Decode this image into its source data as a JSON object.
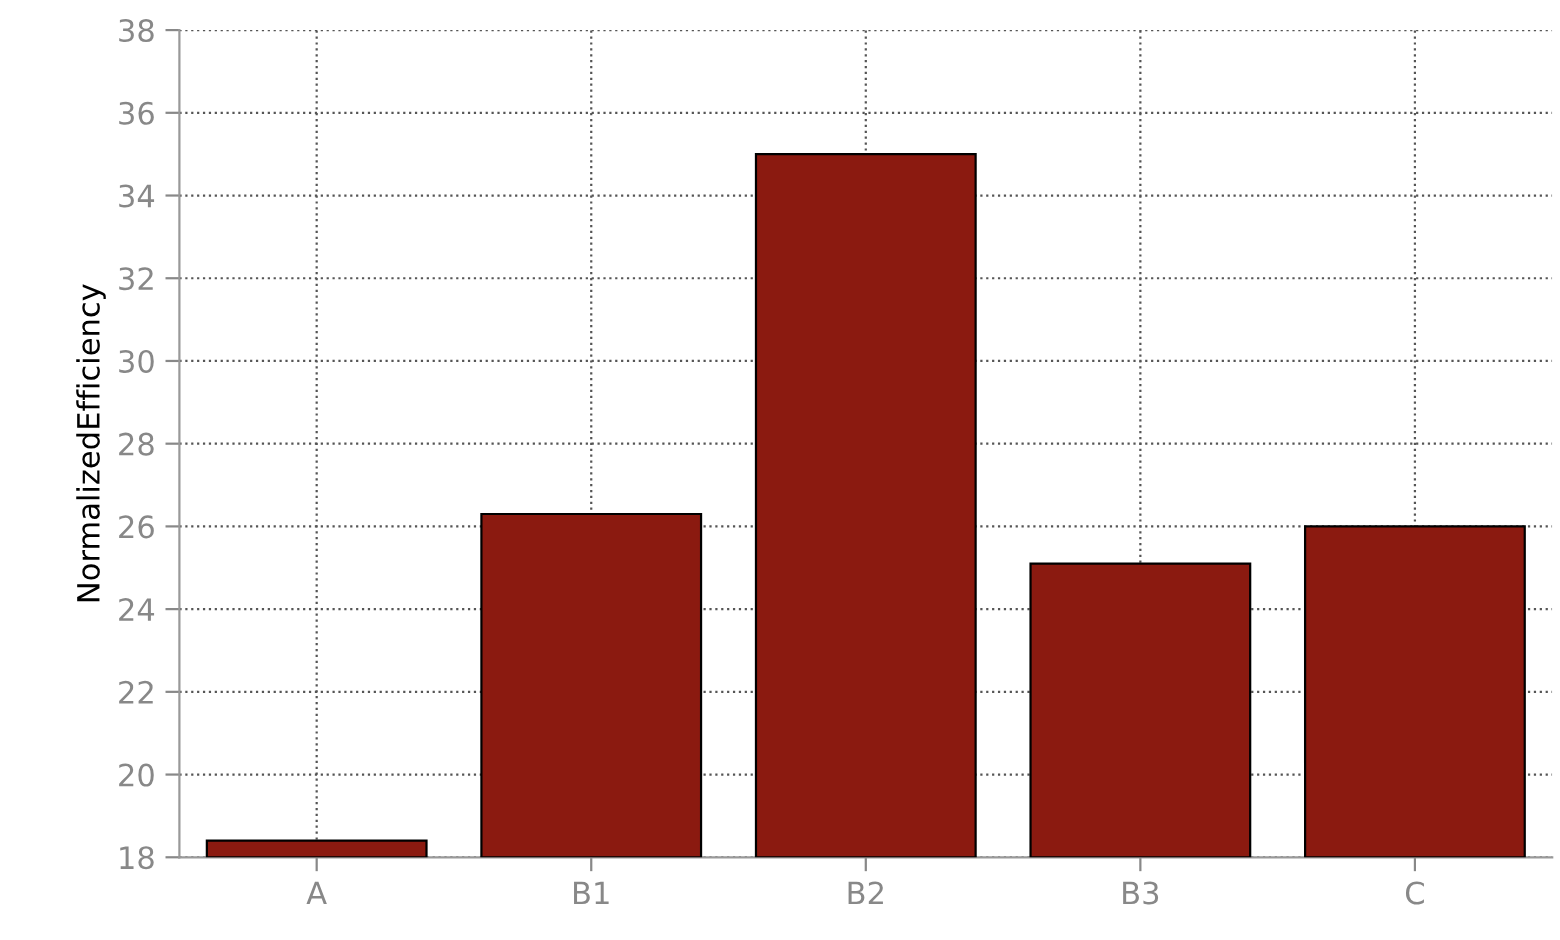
{
  "chart_data": {
    "type": "bar",
    "ylabel": "NormalizedEfficiency",
    "categories": [
      "A",
      "B1",
      "B2",
      "B3",
      "C"
    ],
    "values": [
      18.4,
      26.3,
      35.0,
      25.1,
      26.0
    ],
    "color": "#8b1a10",
    "ylim": [
      18,
      38
    ],
    "yticks": [
      18,
      20,
      22,
      24,
      26,
      28,
      30,
      32,
      34,
      36,
      38
    ],
    "grid": true
  }
}
